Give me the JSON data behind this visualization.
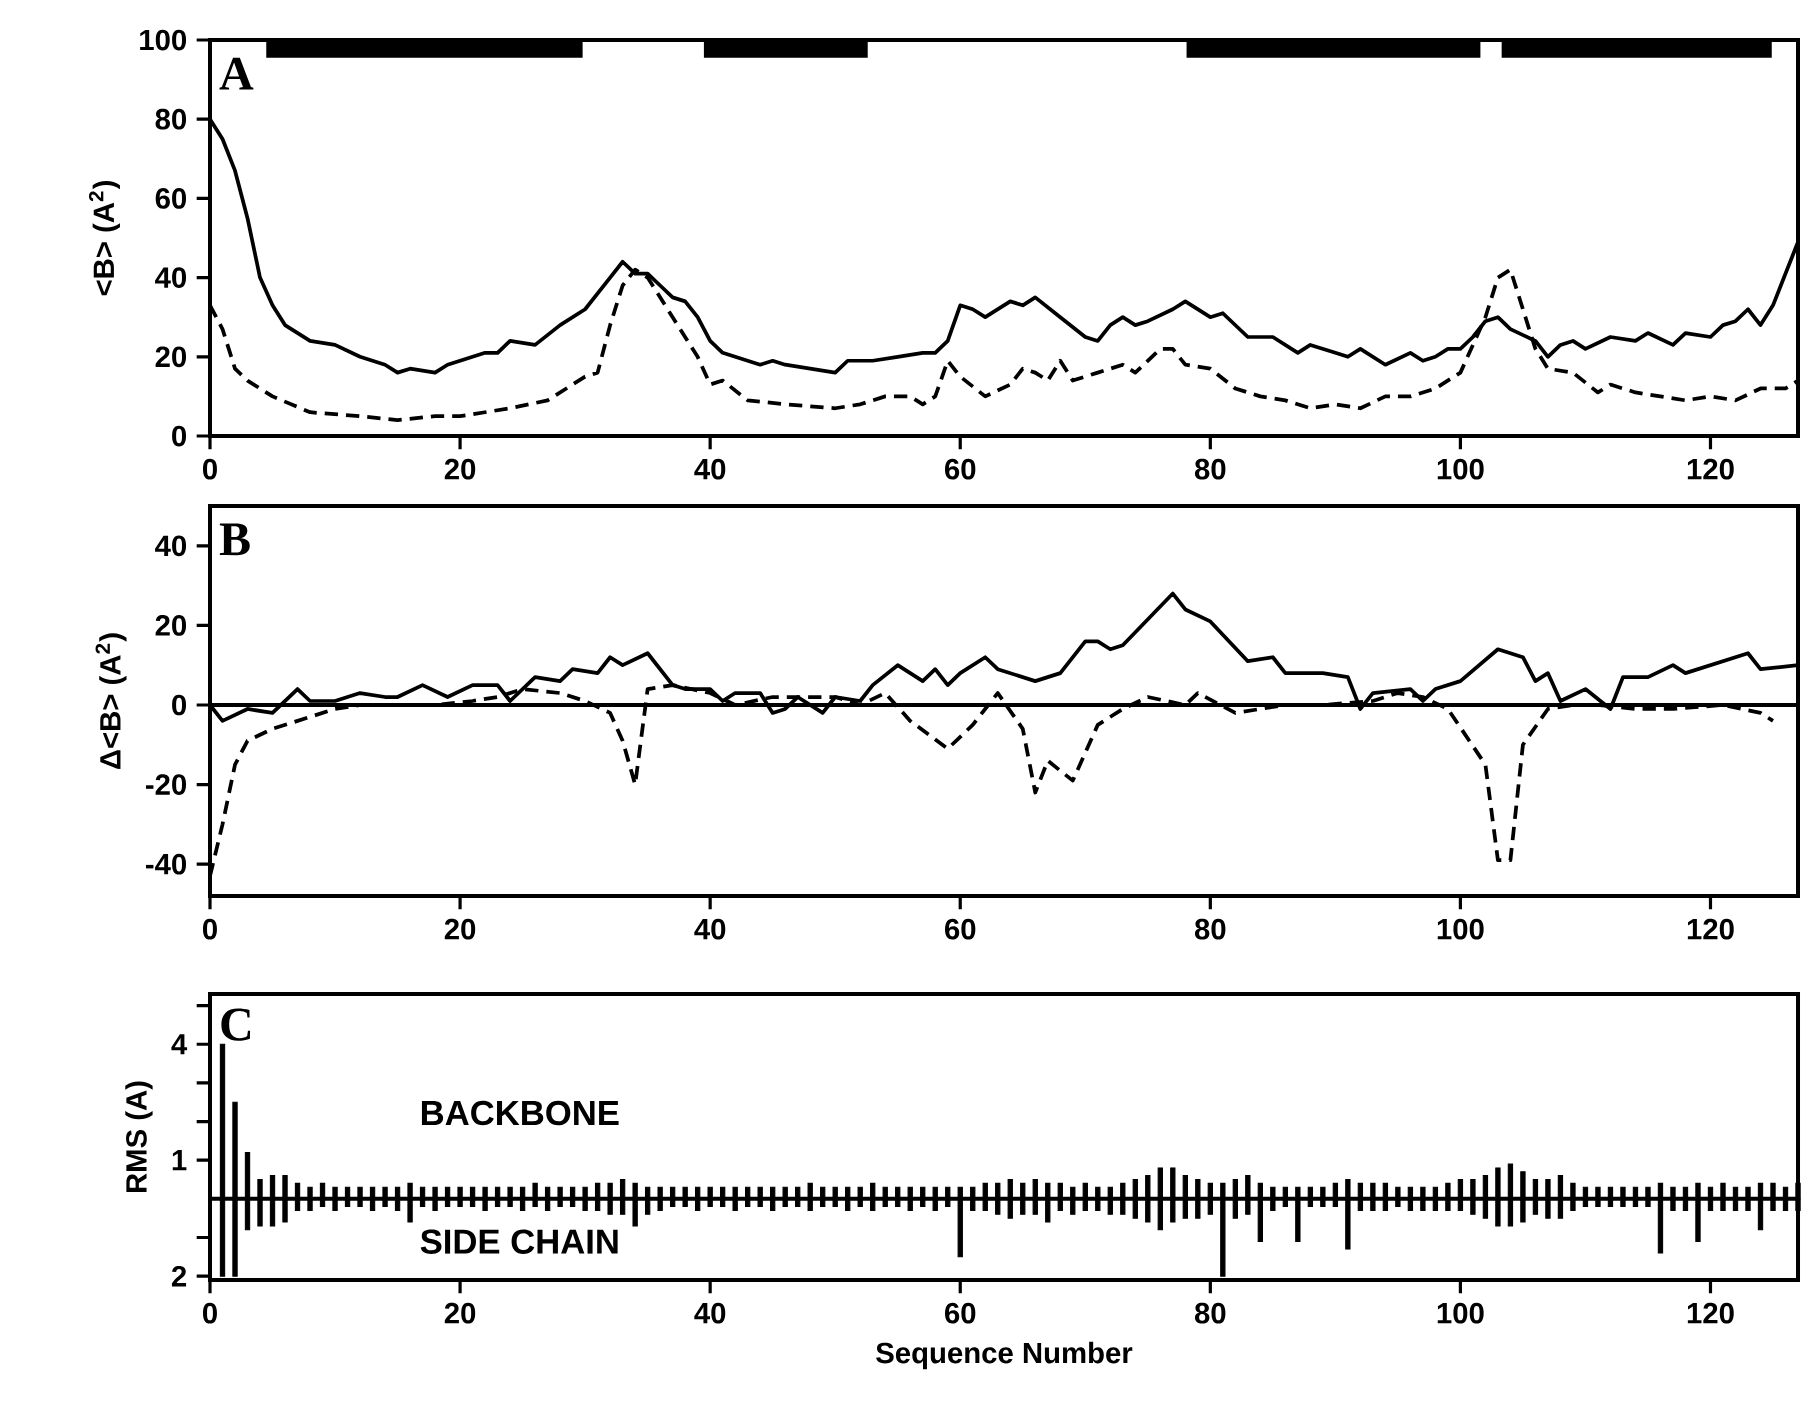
{
  "chart_data": [
    {
      "type": "line",
      "ylabel": "<B>  (A$^{2}$)",
      "annotations": [
        "A"
      ],
      "xlim": [
        0,
        127
      ],
      "ylim": [
        0,
        100
      ],
      "xticks": [
        0,
        20,
        40,
        60,
        80,
        100,
        120
      ],
      "yticks": [
        0,
        20,
        40,
        60,
        80,
        100
      ],
      "bands": [
        {
          "axis": "x",
          "from": 4.5,
          "to": 29.8,
          "color": "#000000"
        },
        {
          "axis": "x",
          "from": 39.5,
          "to": 52.6,
          "color": "#000000"
        },
        {
          "axis": "x",
          "from": 78.1,
          "to": 101.6,
          "color": "#000000"
        },
        {
          "axis": "x",
          "from": 103.3,
          "to": 124.9,
          "color": "#000000"
        }
      ],
      "series": [
        {
          "color": "#000000",
          "line_style": "solid",
          "x": [
            0,
            1,
            2,
            3,
            4,
            5,
            6,
            8,
            10,
            12,
            14,
            15,
            16,
            18,
            19,
            20,
            22,
            23,
            24,
            26,
            28,
            30,
            32,
            33,
            34,
            35,
            36,
            37,
            38,
            39,
            40,
            41,
            42,
            44,
            45,
            46,
            48,
            50,
            51,
            53,
            55,
            57,
            58,
            59,
            60,
            61,
            62,
            64,
            65,
            66,
            68,
            70,
            71,
            72,
            73,
            74,
            75,
            77,
            78,
            80,
            81,
            83,
            85,
            87,
            88,
            90,
            91,
            92,
            94,
            96,
            97,
            98,
            99,
            100,
            101,
            102,
            103,
            104,
            106,
            107,
            108,
            109,
            110,
            112,
            114,
            115,
            117,
            118,
            120,
            121,
            122,
            123,
            124,
            125,
            127
          ],
          "values": [
            80,
            75,
            67,
            55,
            40,
            33,
            28,
            24,
            23,
            20,
            18,
            16,
            17,
            16,
            18,
            19,
            21,
            21,
            24,
            23,
            28,
            32,
            40,
            44,
            41,
            41,
            38,
            35,
            34,
            30,
            24,
            21,
            20,
            18,
            19,
            18,
            17,
            16,
            19,
            19,
            20,
            21,
            21,
            24,
            33,
            32,
            30,
            34,
            33,
            35,
            30,
            25,
            24,
            28,
            30,
            28,
            29,
            32,
            34,
            30,
            31,
            25,
            25,
            21,
            23,
            21,
            20,
            22,
            18,
            21,
            19,
            20,
            22,
            22,
            25,
            29,
            30,
            27,
            24,
            20,
            23,
            24,
            22,
            25,
            24,
            26,
            23,
            26,
            25,
            28,
            29,
            32,
            28,
            33,
            49
          ]
        },
        {
          "color": "#000000",
          "line_style": "dashed",
          "x": [
            0,
            1,
            2,
            3,
            5,
            8,
            12,
            15,
            18,
            20,
            24,
            27,
            30,
            31,
            32,
            33,
            34,
            35,
            37,
            39,
            40,
            41,
            43,
            46,
            50,
            52,
            54,
            56,
            57,
            58,
            59,
            60,
            62,
            64,
            65,
            66,
            67,
            68,
            69,
            71,
            73,
            74,
            76,
            77,
            78,
            80,
            82,
            84,
            86,
            88,
            90,
            92,
            94,
            96,
            98,
            100,
            101,
            102,
            103,
            104,
            105,
            106,
            107,
            109,
            111,
            112,
            114,
            116,
            118,
            120,
            122,
            124,
            126,
            127
          ],
          "values": [
            33,
            27,
            17,
            14,
            10,
            6,
            5,
            4,
            5,
            5,
            7,
            9,
            15,
            16,
            28,
            38,
            42,
            40,
            30,
            20,
            13,
            14,
            9,
            8,
            7,
            8,
            10,
            10,
            8,
            10,
            19,
            15,
            10,
            13,
            17,
            16,
            14,
            19,
            14,
            16,
            18,
            16,
            22,
            22,
            18,
            17,
            12,
            10,
            9,
            7,
            8,
            7,
            10,
            10,
            12,
            16,
            23,
            30,
            40,
            42,
            32,
            22,
            17,
            16,
            11,
            13,
            11,
            10,
            9,
            10,
            9,
            12,
            12,
            14
          ]
        }
      ]
    },
    {
      "type": "line",
      "ylabel": "Δ<B>  (A$^{2}$)",
      "annotations": [
        "B"
      ],
      "xlim": [
        0,
        127
      ],
      "ylim": [
        -48,
        50
      ],
      "xticks": [
        0,
        20,
        40,
        60,
        80,
        100,
        120
      ],
      "yticks": [
        -40,
        -20,
        0,
        20,
        40
      ],
      "ref_lines": [
        {
          "axis": "y",
          "value": 0,
          "color": "#000000"
        }
      ],
      "series": [
        {
          "color": "#000000",
          "line_style": "solid",
          "x": [
            0,
            1,
            3,
            5,
            7,
            8,
            10,
            12,
            14,
            15,
            17,
            19,
            21,
            23,
            24,
            26,
            28,
            29,
            31,
            32,
            33,
            35,
            37,
            38,
            40,
            41,
            42,
            44,
            45,
            46,
            47,
            49,
            50,
            52,
            53,
            55,
            57,
            58,
            59,
            60,
            62,
            63,
            66,
            68,
            70,
            71,
            72,
            73,
            77,
            78,
            80,
            83,
            85,
            86,
            89,
            91,
            92,
            93,
            96,
            97,
            98,
            100,
            103,
            105,
            106,
            107,
            108,
            110,
            112,
            113,
            115,
            117,
            118,
            123,
            124,
            127
          ],
          "values": [
            0,
            -4,
            -1,
            -2,
            4,
            1,
            1,
            3,
            2,
            2,
            5,
            2,
            5,
            5,
            1,
            7,
            6,
            9,
            8,
            12,
            10,
            13,
            5,
            4,
            4,
            1,
            3,
            3,
            -2,
            -1,
            2,
            -2,
            2,
            1,
            5,
            10,
            6,
            9,
            5,
            8,
            12,
            9,
            6,
            8,
            16,
            16,
            14,
            15,
            28,
            24,
            21,
            11,
            12,
            8,
            8,
            7,
            -1,
            3,
            4,
            1,
            4,
            6,
            14,
            12,
            6,
            8,
            1,
            4,
            -1,
            7,
            7,
            10,
            8,
            13,
            9,
            10
          ]
        },
        {
          "color": "#000000",
          "line_style": "dashed",
          "x": [
            0,
            1,
            2,
            3,
            5,
            8,
            10,
            12,
            15,
            18,
            21,
            23,
            25,
            28,
            30,
            32,
            33,
            34,
            35,
            37,
            40,
            42,
            45,
            48,
            50,
            52,
            54,
            56,
            59,
            61,
            63,
            65,
            66,
            67,
            69,
            71,
            73,
            75,
            78,
            79,
            82,
            86,
            89,
            93,
            95,
            97,
            99,
            102,
            103,
            104,
            105,
            107,
            109,
            111,
            114,
            117,
            121,
            124,
            125
          ],
          "values": [
            -43,
            -30,
            -15,
            -9,
            -6,
            -3,
            -1,
            0,
            0,
            0,
            1,
            2,
            4,
            3,
            1,
            -2,
            -9,
            -20,
            4,
            5,
            3,
            0,
            2,
            2,
            2,
            0,
            3,
            -4,
            -11,
            -5,
            3,
            -6,
            -22,
            -14,
            -19,
            -5,
            -1,
            2,
            0,
            3,
            -2,
            0,
            0,
            1,
            3,
            2,
            -1,
            -15,
            -39,
            -39,
            -10,
            -1,
            0,
            0,
            -1,
            -1,
            0,
            -2,
            -4
          ]
        }
      ]
    },
    {
      "type": "bar",
      "stacked": true,
      "xlabel": "Sequence Number",
      "ylabel": "RMS (A)",
      "annotations": [
        "C"
      ],
      "xlim": [
        0,
        127
      ],
      "ylim": [
        -2.1,
        5.3
      ],
      "xticks": [
        0,
        20,
        40,
        60,
        80,
        100,
        120
      ],
      "yticks": [
        {
          "value": -2,
          "label": "2"
        },
        {
          "value": -1,
          "label": null
        },
        1,
        {
          "value": 2,
          "label": null
        },
        {
          "value": 3,
          "label": null
        },
        4,
        {
          "value": 5,
          "label": null
        }
      ],
      "ref_lines": [
        {
          "axis": "y",
          "value": 0,
          "color": "#000000"
        }
      ],
      "x": [
        1,
        2,
        3,
        4,
        5,
        6,
        7,
        8,
        9,
        10,
        11,
        12,
        13,
        14,
        15,
        16,
        17,
        18,
        19,
        20,
        21,
        22,
        23,
        24,
        25,
        26,
        27,
        28,
        29,
        30,
        31,
        32,
        33,
        34,
        35,
        36,
        37,
        38,
        39,
        40,
        41,
        42,
        43,
        44,
        45,
        46,
        47,
        48,
        49,
        50,
        51,
        52,
        53,
        54,
        55,
        56,
        57,
        58,
        59,
        60,
        61,
        62,
        63,
        64,
        65,
        66,
        67,
        68,
        69,
        70,
        71,
        72,
        73,
        74,
        75,
        76,
        77,
        78,
        79,
        80,
        81,
        82,
        83,
        84,
        85,
        86,
        87,
        88,
        89,
        90,
        91,
        92,
        93,
        94,
        95,
        96,
        97,
        98,
        99,
        100,
        101,
        102,
        103,
        104,
        105,
        106,
        107,
        108,
        109,
        110,
        111,
        112,
        113,
        114,
        115,
        116,
        117,
        118,
        119,
        120,
        121,
        122,
        123,
        124,
        125,
        126,
        127
      ],
      "series": [
        {
          "name": "BACKBONE",
          "color": "#000000",
          "values": [
            4.0,
            2.5,
            1.2,
            0.5,
            0.6,
            0.6,
            0.4,
            0.3,
            0.4,
            0.3,
            0.3,
            0.3,
            0.3,
            0.3,
            0.3,
            0.4,
            0.3,
            0.3,
            0.3,
            0.3,
            0.3,
            0.3,
            0.3,
            0.3,
            0.3,
            0.4,
            0.3,
            0.3,
            0.3,
            0.3,
            0.4,
            0.4,
            0.5,
            0.4,
            0.3,
            0.3,
            0.3,
            0.3,
            0.3,
            0.3,
            0.3,
            0.3,
            0.3,
            0.3,
            0.3,
            0.3,
            0.3,
            0.4,
            0.3,
            0.3,
            0.3,
            0.3,
            0.4,
            0.3,
            0.3,
            0.3,
            0.3,
            0.3,
            0.3,
            0.3,
            0.3,
            0.4,
            0.4,
            0.5,
            0.4,
            0.5,
            0.4,
            0.4,
            0.3,
            0.4,
            0.3,
            0.3,
            0.4,
            0.5,
            0.6,
            0.8,
            0.8,
            0.6,
            0.5,
            0.4,
            0.4,
            0.5,
            0.6,
            0.4,
            0.3,
            0.3,
            0.3,
            0.3,
            0.3,
            0.4,
            0.5,
            0.4,
            0.4,
            0.4,
            0.3,
            0.3,
            0.3,
            0.3,
            0.4,
            0.5,
            0.5,
            0.6,
            0.8,
            0.9,
            0.7,
            0.5,
            0.5,
            0.6,
            0.4,
            0.3,
            0.3,
            0.3,
            0.3,
            0.3,
            0.3,
            0.4,
            0.3,
            0.3,
            0.4,
            0.3,
            0.4,
            0.3,
            0.3,
            0.4,
            0.4,
            0.3,
            0.4
          ]
        },
        {
          "name": "SIDE CHAIN",
          "color": "#000000",
          "values": [
            -2.0,
            -2.0,
            -0.8,
            -0.7,
            -0.7,
            -0.6,
            -0.3,
            -0.3,
            -0.2,
            -0.3,
            -0.2,
            -0.2,
            -0.3,
            -0.2,
            -0.3,
            -0.6,
            -0.2,
            -0.3,
            -0.2,
            -0.2,
            -0.2,
            -0.3,
            -0.2,
            -0.2,
            -0.3,
            -0.2,
            -0.3,
            -0.2,
            -0.2,
            -0.3,
            -0.3,
            -0.4,
            -0.4,
            -0.7,
            -0.4,
            -0.3,
            -0.2,
            -0.2,
            -0.3,
            -0.2,
            -0.2,
            -0.3,
            -0.2,
            -0.2,
            -0.3,
            -0.2,
            -0.2,
            -0.3,
            -0.2,
            -0.2,
            -0.3,
            -0.2,
            -0.3,
            -0.2,
            -0.2,
            -0.3,
            -0.2,
            -0.3,
            -0.2,
            -1.5,
            -0.3,
            -0.3,
            -0.4,
            -0.5,
            -0.4,
            -0.4,
            -0.6,
            -0.3,
            -0.4,
            -0.3,
            -0.3,
            -0.4,
            -0.4,
            -0.5,
            -0.6,
            -0.8,
            -0.6,
            -0.5,
            -0.5,
            -0.4,
            -2.0,
            -0.5,
            -0.4,
            -1.1,
            -0.3,
            -0.2,
            -1.1,
            -0.2,
            -0.2,
            -0.2,
            -1.3,
            -0.3,
            -0.3,
            -0.3,
            -0.2,
            -0.3,
            -0.3,
            -0.3,
            -0.3,
            -0.3,
            -0.4,
            -0.5,
            -0.7,
            -0.7,
            -0.6,
            -0.4,
            -0.5,
            -0.5,
            -0.3,
            -0.2,
            -0.2,
            -0.2,
            -0.2,
            -0.2,
            -0.2,
            -1.4,
            -0.3,
            -0.3,
            -1.1,
            -0.3,
            -0.3,
            -0.3,
            -0.3,
            -0.8,
            -0.3,
            -0.3,
            -0.3
          ]
        }
      ]
    }
  ]
}
